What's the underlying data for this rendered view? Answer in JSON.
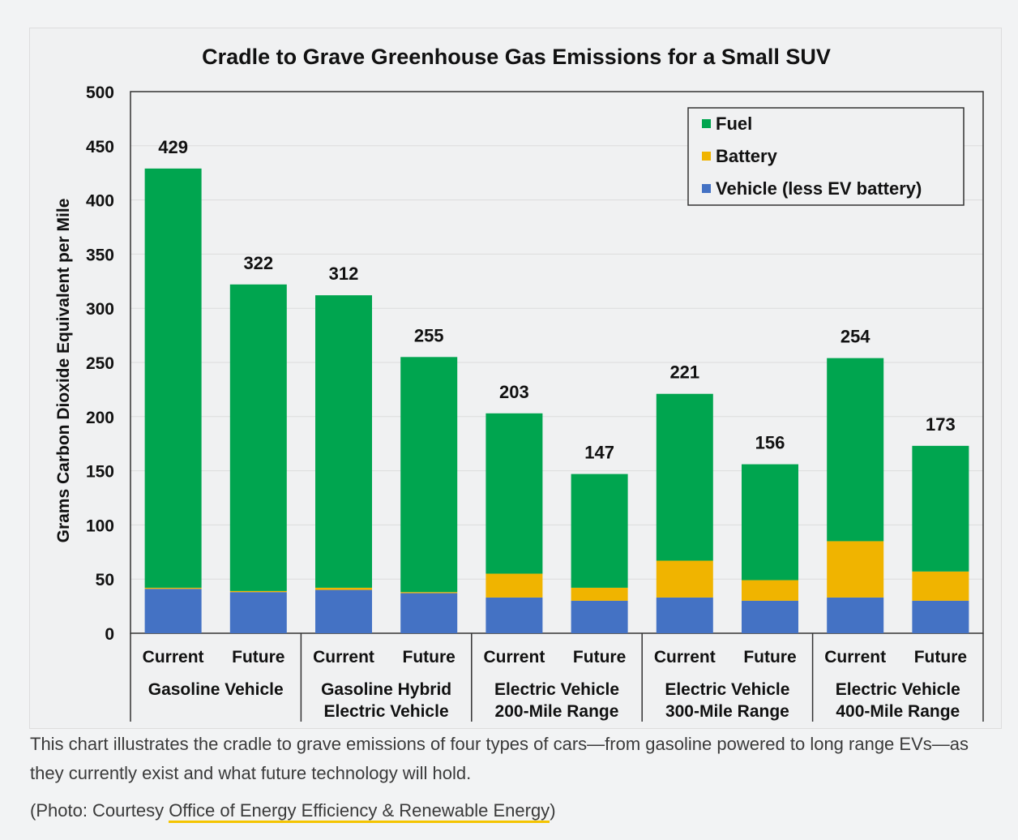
{
  "chart_data": {
    "type": "bar",
    "stacked": true,
    "title": "Cradle to Grave Greenhouse Gas Emissions for a Small SUV",
    "ylabel": "Grams Carbon Dioxide Equivalent per Mile",
    "ylim": [
      0,
      500
    ],
    "yticks": [
      0,
      50,
      100,
      150,
      200,
      250,
      300,
      350,
      400,
      450,
      500
    ],
    "legend_position": "top-right",
    "categories": [
      "Current",
      "Future",
      "Current",
      "Future",
      "Current",
      "Future",
      "Current",
      "Future",
      "Current",
      "Future"
    ],
    "groups": [
      [
        "Gasoline Vehicle"
      ],
      [
        "Gasoline Hybrid",
        "Electric Vehicle"
      ],
      [
        "Electric Vehicle",
        "200-Mile Range"
      ],
      [
        "Electric Vehicle",
        "300-Mile Range"
      ],
      [
        "Electric Vehicle",
        "400-Mile Range"
      ]
    ],
    "series": [
      {
        "name": "Vehicle (less EV battery)",
        "color": "#4472c4",
        "values": [
          41,
          38,
          40,
          37,
          33,
          30,
          33,
          30,
          33,
          30
        ]
      },
      {
        "name": "Battery",
        "color": "#f0b400",
        "values": [
          1,
          1,
          2,
          1,
          22,
          12,
          34,
          19,
          52,
          27
        ]
      },
      {
        "name": "Fuel",
        "color": "#00a54f",
        "values": [
          387,
          283,
          270,
          217,
          148,
          105,
          154,
          107,
          169,
          116
        ]
      }
    ],
    "totals": [
      429,
      322,
      312,
      255,
      203,
      147,
      221,
      156,
      254,
      173
    ]
  },
  "caption": "This chart illustrates the cradle to grave emissions of four types of cars—from gasoline powered to long range EVs—as they currently exist and what future technology will hold.",
  "credit_prefix": "(Photo: Courtesy ",
  "credit_link": "Office of Energy Efficiency & Renewable Energy",
  "credit_suffix": ")"
}
